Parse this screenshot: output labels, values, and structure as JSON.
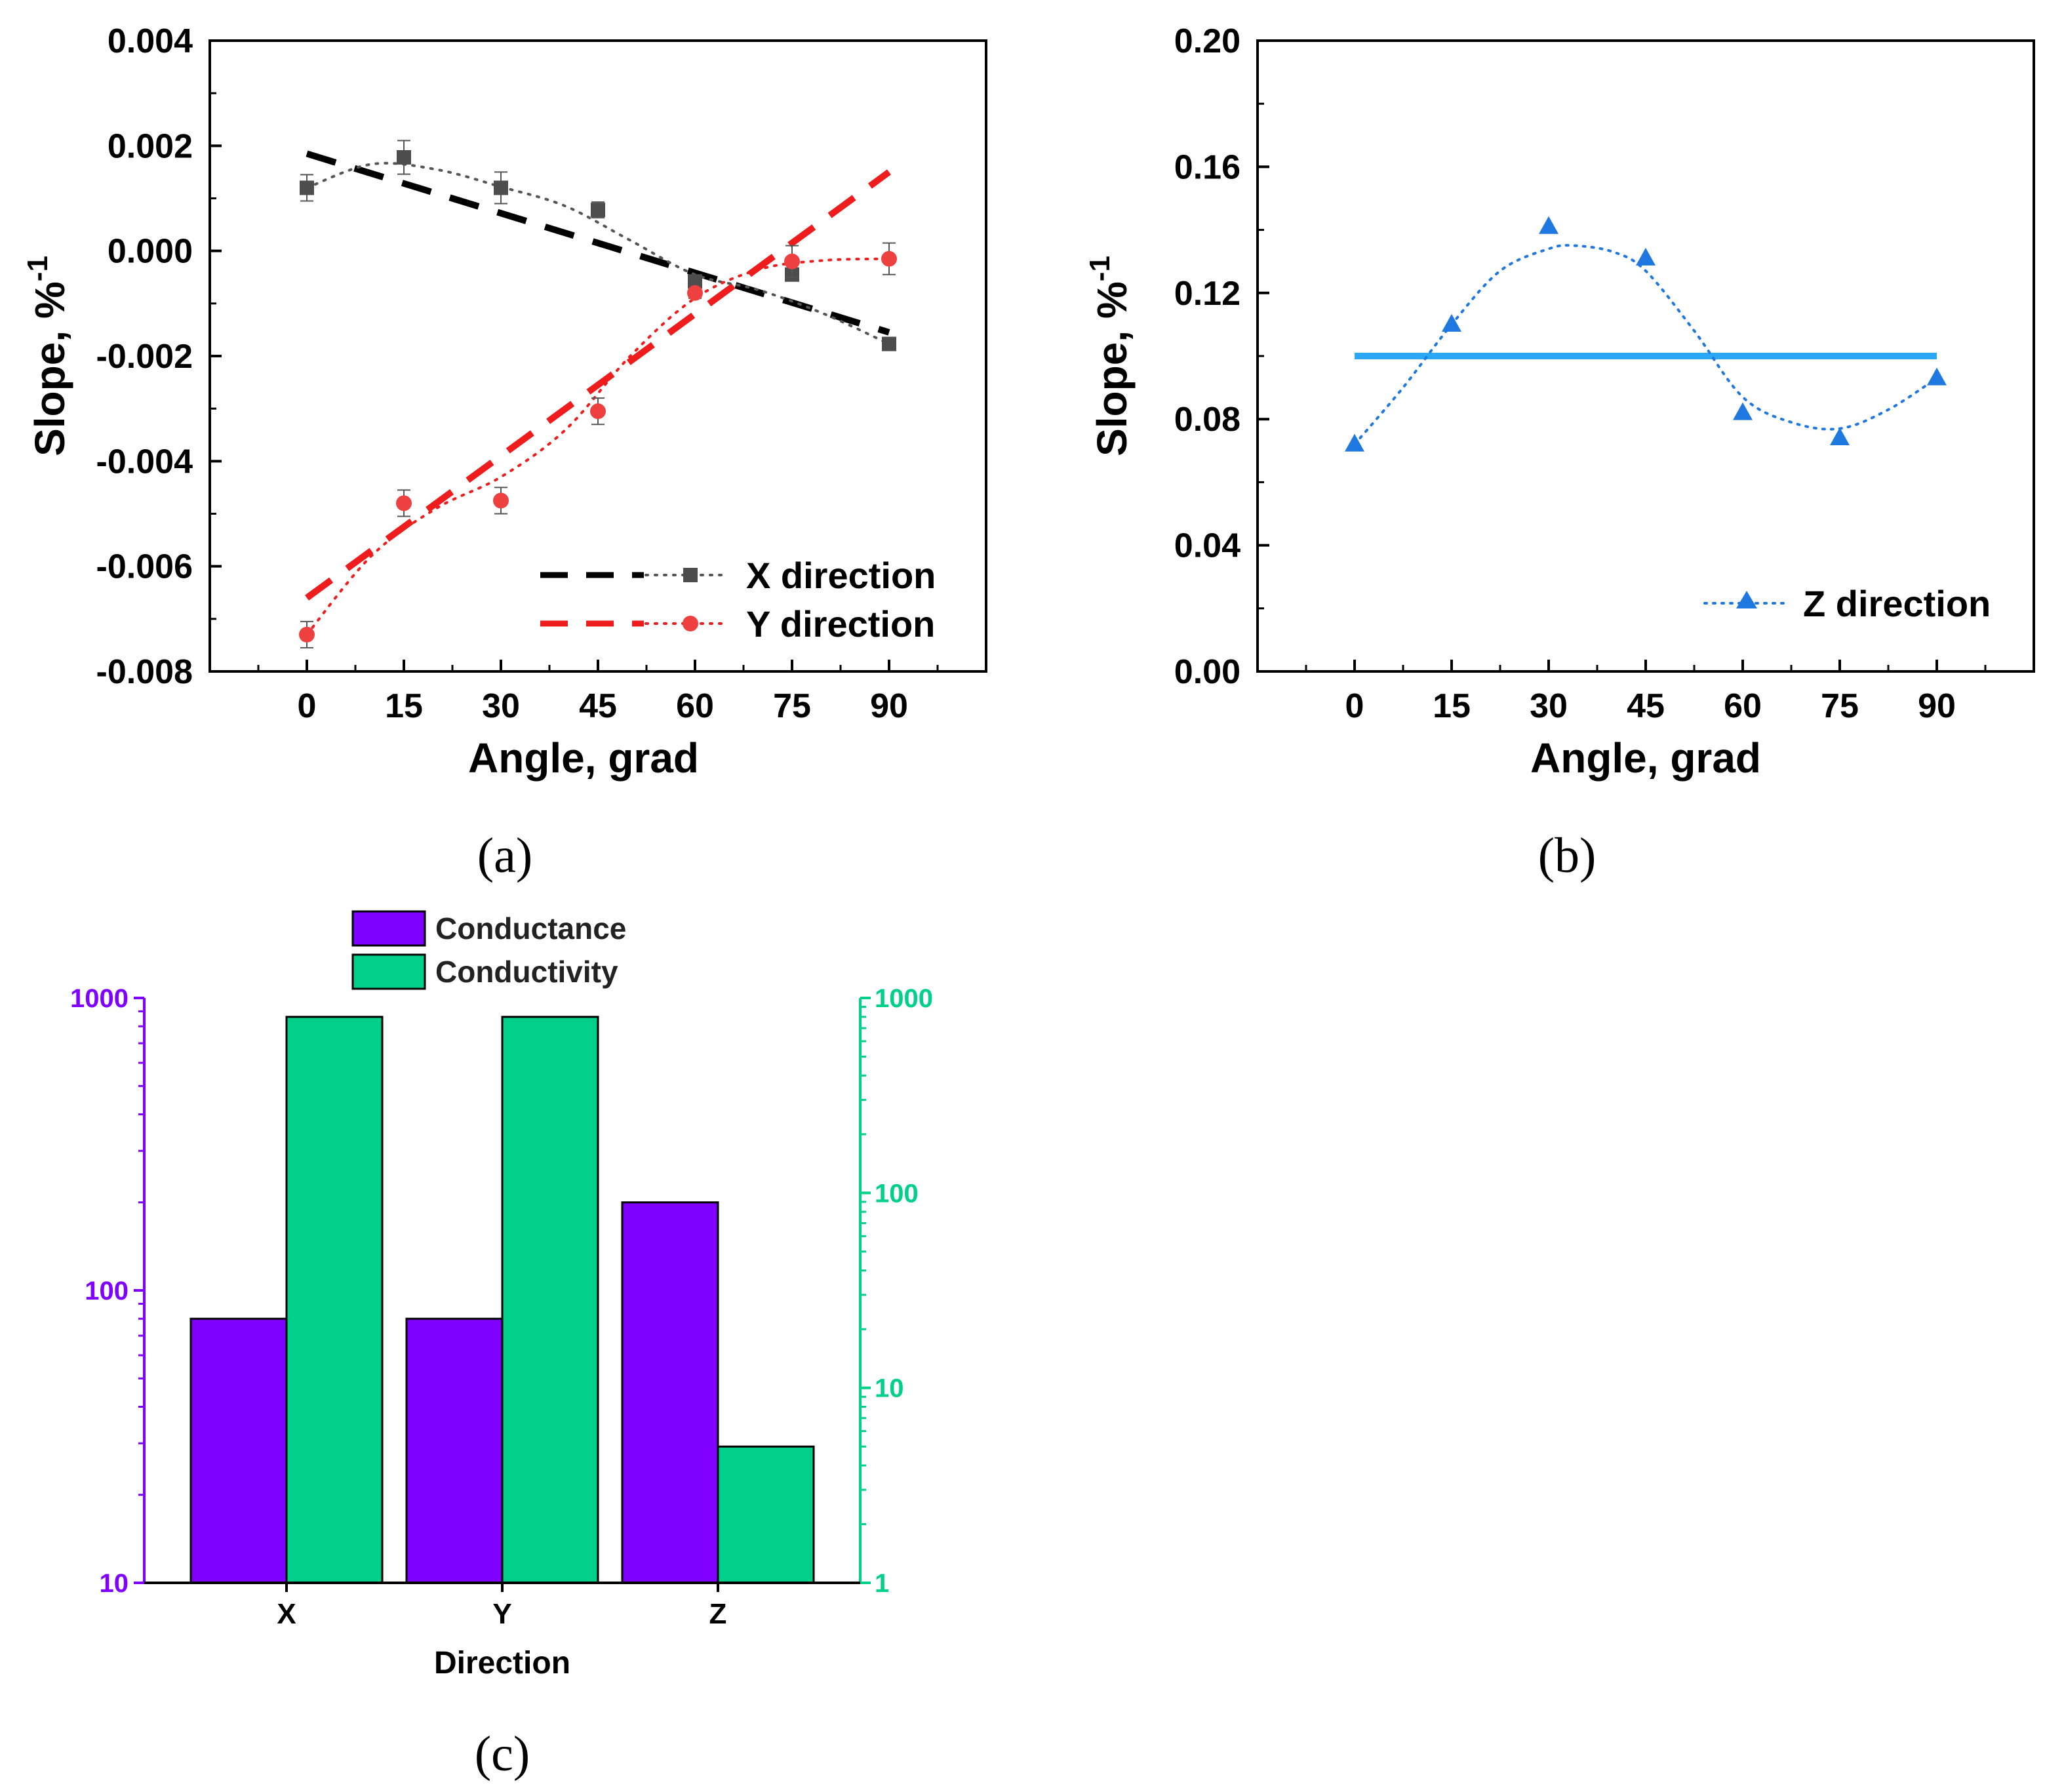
{
  "colors": {
    "x_series": "#000000",
    "x_marker": "#4d4d4d",
    "y_series": "#ee1c1c",
    "y_marker": "#ef4040",
    "z_series": "#1f77e0",
    "z_line": "#2aa7f5",
    "conductance": "#7f00ff",
    "conductivity": "#00d08a"
  },
  "chart_data": [
    {
      "panel_label": "(a)",
      "type": "scatter",
      "xlabel": "Angle, grad",
      "ylabel": "Slope, %",
      "ylabel_superscript": "-1",
      "xlim": [
        -15,
        105
      ],
      "ylim": [
        -0.008,
        0.004
      ],
      "x_ticks": [
        0,
        15,
        30,
        45,
        60,
        75,
        90
      ],
      "y_ticks": [
        -0.008,
        -0.006,
        -0.004,
        -0.002,
        0.0,
        0.002,
        0.004
      ],
      "y_tick_labels": [
        "-0.008",
        "-0.006",
        "-0.004",
        "-0.002",
        "0.000",
        "0.002",
        "0.004"
      ],
      "legend_position": "bottom-right",
      "series": [
        {
          "name": "X direction",
          "marker": "square",
          "x": [
            0,
            15,
            30,
            45,
            60,
            75,
            90
          ],
          "y": [
            0.0012,
            0.00178,
            0.0012,
            0.00078,
            -0.00058,
            -0.00045,
            -0.00177
          ],
          "error": [
            0.00025,
            0.00032,
            0.0003,
            0.00015,
            0.0001,
            0.0001,
            0.0001
          ],
          "fit": {
            "style": "dashed",
            "x": [
              0,
              90
            ],
            "y": [
              0.00185,
              -0.00155
            ]
          },
          "smooth": {
            "style": "dotted",
            "x": [
              0,
              10,
              20,
              30,
              40,
              50,
              60,
              70,
              80,
              90
            ],
            "y": [
              0.0012,
              0.00165,
              0.00155,
              0.00122,
              0.00085,
              0.0002,
              -0.00045,
              -0.00075,
              -0.0012,
              -0.00177
            ]
          }
        },
        {
          "name": "Y direction",
          "marker": "circle",
          "x": [
            0,
            15,
            30,
            45,
            60,
            75,
            90
          ],
          "y": [
            -0.0073,
            -0.0048,
            -0.00475,
            -0.00305,
            -0.0008,
            -0.0002,
            -0.00015
          ],
          "error": [
            0.00025,
            0.00025,
            0.00025,
            0.00025,
            0.0001,
            0.0003,
            0.0003
          ],
          "fit": {
            "style": "dashed",
            "x": [
              0,
              90
            ],
            "y": [
              -0.0066,
              0.0015
            ]
          },
          "smooth": {
            "style": "dotted",
            "x": [
              0,
              10,
              20,
              30,
              40,
              50,
              60,
              70,
              80,
              90
            ],
            "y": [
              -0.0073,
              -0.0058,
              -0.0049,
              -0.0043,
              -0.0034,
              -0.002,
              -0.0009,
              -0.00035,
              -0.00018,
              -0.00015
            ]
          }
        }
      ]
    },
    {
      "panel_label": "(b)",
      "type": "scatter",
      "xlabel": "Angle, grad",
      "ylabel": "Slope, %",
      "ylabel_superscript": "-1",
      "xlim": [
        -15,
        105
      ],
      "ylim": [
        0.0,
        0.2
      ],
      "x_ticks": [
        0,
        15,
        30,
        45,
        60,
        75,
        90
      ],
      "y_ticks": [
        0.0,
        0.04,
        0.08,
        0.12,
        0.16,
        0.2
      ],
      "y_tick_labels": [
        "0.00",
        "0.04",
        "0.08",
        "0.12",
        "0.16",
        "0.20"
      ],
      "legend_position": "bottom-right",
      "series": [
        {
          "name": "Z direction",
          "marker": "triangle",
          "x": [
            0,
            15,
            30,
            45,
            60,
            75,
            90
          ],
          "y": [
            0.072,
            0.11,
            0.141,
            0.131,
            0.082,
            0.074,
            0.093
          ],
          "smooth": {
            "style": "dotted",
            "x": [
              0,
              7.5,
              15,
              22.5,
              30,
              34,
              40,
              45,
              52.5,
              60,
              67.5,
              75,
              82.5,
              90
            ],
            "y": [
              0.072,
              0.09,
              0.11,
              0.127,
              0.134,
              0.135,
              0.133,
              0.127,
              0.108,
              0.087,
              0.079,
              0.077,
              0.083,
              0.093
            ]
          },
          "mean_line": {
            "x": [
              0,
              90
            ],
            "y": [
              0.1,
              0.1
            ]
          }
        }
      ]
    },
    {
      "panel_label": "(c)",
      "type": "bar",
      "xlabel": "Direction",
      "categories": [
        "X",
        "Y",
        "Z"
      ],
      "y_scale": "log",
      "left_axis": {
        "ylim": [
          10,
          1000
        ],
        "ticks": [
          10,
          100,
          1000
        ],
        "tick_labels": [
          "10",
          "100",
          "1000"
        ]
      },
      "right_axis": {
        "ylim": [
          1,
          1000
        ],
        "ticks": [
          1,
          10,
          100,
          1000
        ],
        "tick_labels": [
          "1",
          "10",
          "100",
          "1000"
        ]
      },
      "legend_position": "top",
      "series": [
        {
          "name": "Conductance",
          "axis": "left",
          "values": [
            80,
            80,
            200
          ]
        },
        {
          "name": "Conductivity",
          "axis": "right",
          "values": [
            800,
            800,
            5
          ]
        }
      ]
    }
  ]
}
